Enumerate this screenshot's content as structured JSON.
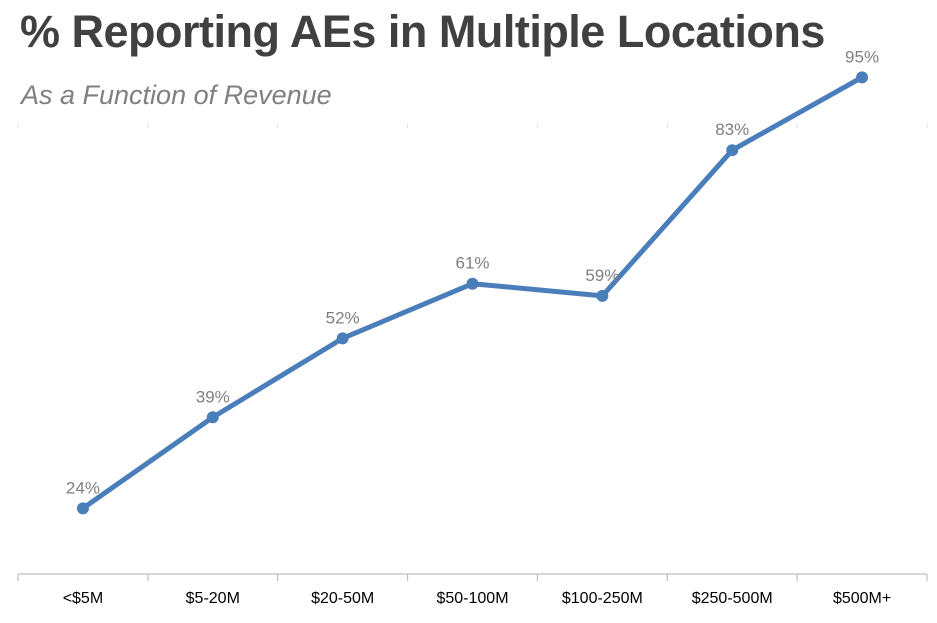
{
  "chart_data": {
    "type": "line",
    "title": "% Reporting AEs in Multiple Locations",
    "subtitle": "As a Function of Revenue",
    "categories": [
      "<$5M",
      "$5-20M",
      "$20-50M",
      "$50-100M",
      "$100-250M",
      "$250-500M",
      "$500M+"
    ],
    "series": [
      {
        "values": [
          24,
          39,
          52,
          61,
          59,
          83,
          95
        ]
      }
    ],
    "data_labels": [
      "24%",
      "39%",
      "52%",
      "61%",
      "59%",
      "83%",
      "95%"
    ],
    "xlabel": "",
    "ylabel": "",
    "ylim": [
      0,
      100
    ],
    "grid": false,
    "legend": "none",
    "line_color": "#4a7ebb",
    "label_color": "#7f7f7f"
  }
}
